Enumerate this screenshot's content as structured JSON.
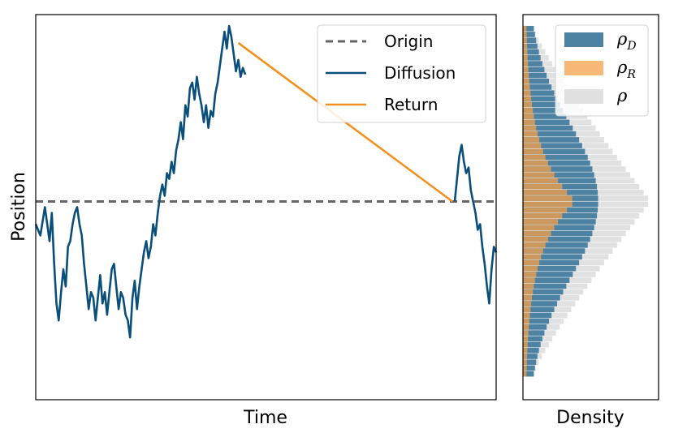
{
  "chart_data": [
    {
      "type": "line",
      "xlabel": "Time",
      "ylabel": "Position",
      "ticks_shown": false,
      "grid": false,
      "legend_placement": "top-right",
      "ylim": [
        -1.75,
        1.65
      ],
      "origin_level": 0,
      "series": [
        {
          "name": "Origin",
          "style": "dashed",
          "color": "#666666",
          "points": [
            [
              0.0,
              0.0
            ],
            [
              1.0,
              0.0
            ]
          ]
        },
        {
          "name": "Diffusion",
          "style": "solid",
          "color": "#0a4f7a",
          "segments": [
            [
              [
                0.0,
                -0.2
              ],
              [
                0.01,
                -0.3
              ],
              [
                0.02,
                -0.05
              ],
              [
                0.03,
                -0.35
              ],
              [
                0.035,
                -0.1
              ],
              [
                0.04,
                -0.55
              ],
              [
                0.045,
                -0.9
              ],
              [
                0.05,
                -1.05
              ],
              [
                0.055,
                -0.8
              ],
              [
                0.06,
                -0.6
              ],
              [
                0.065,
                -0.75
              ],
              [
                0.07,
                -0.4
              ],
              [
                0.075,
                -0.35
              ],
              [
                0.08,
                -0.2
              ],
              [
                0.085,
                -0.1
              ],
              [
                0.09,
                -0.05
              ],
              [
                0.095,
                -0.2
              ],
              [
                0.1,
                -0.3
              ],
              [
                0.105,
                -0.55
              ],
              [
                0.11,
                -0.75
              ],
              [
                0.115,
                -0.95
              ],
              [
                0.12,
                -0.8
              ],
              [
                0.125,
                -0.85
              ],
              [
                0.13,
                -1.05
              ],
              [
                0.135,
                -0.85
              ],
              [
                0.14,
                -0.65
              ],
              [
                0.145,
                -0.9
              ],
              [
                0.15,
                -0.8
              ],
              [
                0.155,
                -1.0
              ],
              [
                0.16,
                -0.8
              ],
              [
                0.165,
                -0.6
              ],
              [
                0.17,
                -0.55
              ],
              [
                0.175,
                -0.75
              ],
              [
                0.18,
                -0.95
              ],
              [
                0.185,
                -0.8
              ],
              [
                0.19,
                -0.85
              ],
              [
                0.195,
                -1.0
              ],
              [
                0.2,
                -1.05
              ],
              [
                0.205,
                -1.2
              ],
              [
                0.21,
                -0.85
              ],
              [
                0.215,
                -0.7
              ],
              [
                0.22,
                -0.95
              ],
              [
                0.225,
                -0.75
              ],
              [
                0.23,
                -0.6
              ],
              [
                0.235,
                -0.45
              ],
              [
                0.24,
                -0.35
              ],
              [
                0.245,
                -0.5
              ],
              [
                0.25,
                -0.4
              ],
              [
                0.255,
                -0.2
              ],
              [
                0.26,
                -0.3
              ],
              [
                0.265,
                -0.1
              ],
              [
                0.27,
                0.05
              ],
              [
                0.275,
                0.15
              ],
              [
                0.28,
                0.05
              ],
              [
                0.285,
                0.25
              ],
              [
                0.29,
                0.2
              ],
              [
                0.295,
                0.35
              ],
              [
                0.3,
                0.25
              ],
              [
                0.305,
                0.45
              ],
              [
                0.31,
                0.55
              ],
              [
                0.315,
                0.7
              ],
              [
                0.32,
                0.55
              ],
              [
                0.325,
                0.85
              ],
              [
                0.33,
                0.75
              ],
              [
                0.335,
                1.0
              ],
              [
                0.34,
                1.05
              ],
              [
                0.345,
                0.9
              ],
              [
                0.35,
                1.1
              ],
              [
                0.355,
                0.95
              ],
              [
                0.36,
                0.85
              ],
              [
                0.365,
                0.7
              ],
              [
                0.37,
                0.85
              ],
              [
                0.375,
                0.65
              ],
              [
                0.38,
                0.8
              ],
              [
                0.385,
                0.75
              ],
              [
                0.39,
                0.95
              ],
              [
                0.395,
                1.05
              ],
              [
                0.4,
                1.2
              ],
              [
                0.405,
                1.35
              ],
              [
                0.41,
                1.5
              ],
              [
                0.415,
                1.35
              ],
              [
                0.42,
                1.55
              ],
              [
                0.425,
                1.45
              ],
              [
                0.43,
                1.3
              ],
              [
                0.435,
                1.15
              ],
              [
                0.44,
                1.25
              ],
              [
                0.445,
                1.1
              ],
              [
                0.45,
                1.18
              ],
              [
                0.455,
                1.12
              ]
            ],
            [
              [
                0.91,
                0.0
              ],
              [
                0.915,
                0.2
              ],
              [
                0.92,
                0.4
              ],
              [
                0.925,
                0.5
              ],
              [
                0.93,
                0.35
              ],
              [
                0.935,
                0.25
              ],
              [
                0.94,
                0.3
              ],
              [
                0.945,
                0.1
              ],
              [
                0.95,
                0.0
              ],
              [
                0.955,
                -0.1
              ],
              [
                0.96,
                -0.25
              ],
              [
                0.965,
                -0.2
              ],
              [
                0.97,
                -0.4
              ],
              [
                0.975,
                -0.55
              ],
              [
                0.98,
                -0.75
              ],
              [
                0.985,
                -0.9
              ],
              [
                0.99,
                -0.6
              ],
              [
                0.995,
                -0.4
              ],
              [
                1.0,
                -0.45
              ]
            ]
          ]
        },
        {
          "name": "Return",
          "style": "solid",
          "color": "#f29120",
          "points": [
            [
              0.44,
              1.4
            ],
            [
              0.905,
              0.0
            ]
          ]
        }
      ],
      "legend": [
        {
          "label": "Origin",
          "style": "dashed",
          "color": "#666666"
        },
        {
          "label": "Diffusion",
          "style": "solid",
          "color": "#0a4f7a"
        },
        {
          "label": "Return",
          "style": "solid",
          "color": "#f29120"
        }
      ]
    },
    {
      "type": "bar",
      "orientation": "horizontal",
      "stacked": false,
      "xlabel": "Density",
      "ticks_shown": false,
      "legend_placement": "top-right",
      "bins_count": 60,
      "ylim": [
        -1.75,
        1.65
      ],
      "y_range": [
        -1.55,
        1.55
      ],
      "series": [
        {
          "name": "ρ",
          "color": "#dcdcdc",
          "opacity": 0.85,
          "peak": 1.0,
          "profile": "tent"
        },
        {
          "name": "ρ_D",
          "color": "#4d82a3",
          "opacity": 1.0,
          "peak": 0.59,
          "profile": "smooth"
        },
        {
          "name": "ρ_R",
          "color": "#f5a04a",
          "opacity": 0.75,
          "peak": 0.41,
          "profile": "cusp"
        }
      ],
      "legend": [
        {
          "symbol": "ρ",
          "sub": "D",
          "color": "#4d82a3",
          "opacity": 1.0
        },
        {
          "symbol": "ρ",
          "sub": "R",
          "color": "#f5a04a",
          "opacity": 0.75
        },
        {
          "symbol": "ρ",
          "sub": "",
          "color": "#dcdcdc",
          "opacity": 0.85
        }
      ]
    }
  ]
}
